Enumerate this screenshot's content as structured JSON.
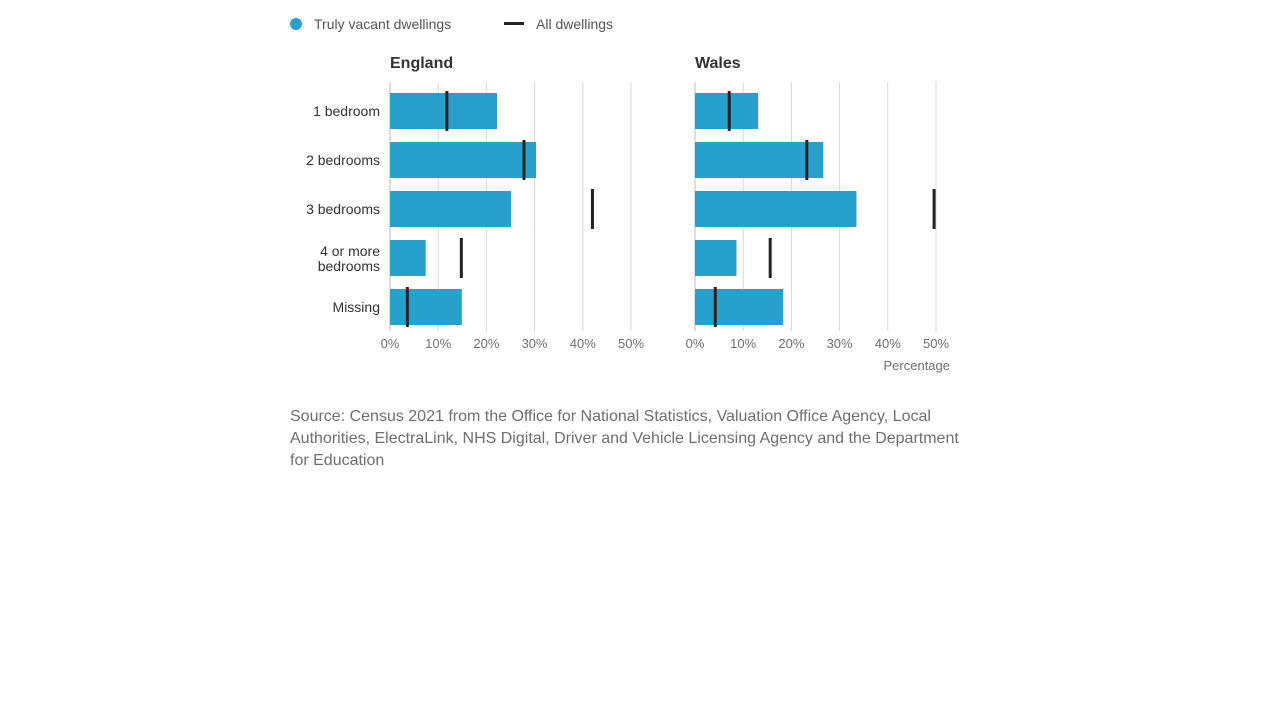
{
  "legend": {
    "vacant_label": "Truly vacant dwellings",
    "all_label": "All dwellings"
  },
  "colors": {
    "bar": "#27a0cc",
    "marker": "#222222",
    "grid": "#d9d9d9",
    "axis": "#bdbdbd"
  },
  "axis": {
    "title": "Percentage",
    "ticks": [
      "0%",
      "10%",
      "20%",
      "30%",
      "40%",
      "50%"
    ]
  },
  "source": "Source: Census 2021 from the Office for National Statistics, Valuation Office Agency, Local Authorities, ElectraLink, NHS Digital, Driver and Vehicle Licensing Agency and the Department for Education",
  "chart_data": {
    "type": "bar",
    "orientation": "horizontal",
    "categories": [
      [
        "1 bedroom"
      ],
      [
        "2 bedrooms"
      ],
      [
        "3 bedrooms"
      ],
      [
        "4 or more",
        "bedrooms"
      ],
      [
        "Missing"
      ]
    ],
    "xlim": [
      0,
      50
    ],
    "grid": true,
    "legend_position": "top-left",
    "panels": [
      {
        "title": "England",
        "series": [
          {
            "name": "Truly vacant dwellings",
            "kind": "bar",
            "values": [
              22.2,
              30.3,
              25.1,
              7.4,
              14.9
            ]
          },
          {
            "name": "All dwellings",
            "kind": "marker",
            "values": [
              11.8,
              27.8,
              42.0,
              14.8,
              3.6
            ]
          }
        ]
      },
      {
        "title": "Wales",
        "series": [
          {
            "name": "Truly vacant dwellings",
            "kind": "bar",
            "values": [
              13.1,
              26.6,
              33.5,
              8.6,
              18.3
            ]
          },
          {
            "name": "All dwellings",
            "kind": "marker",
            "values": [
              7.1,
              23.2,
              49.6,
              15.6,
              4.2
            ]
          }
        ]
      }
    ]
  }
}
